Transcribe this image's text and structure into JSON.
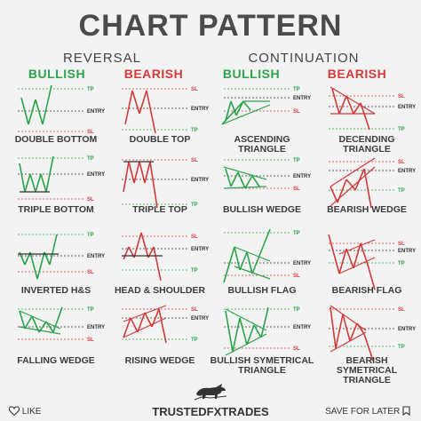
{
  "header": {
    "title": "CHART PATTERN",
    "reversal": "REVERSAL",
    "continuation": "CONTINUATION",
    "bullish_left": "BULLISH",
    "bearish_left": "BEARISH",
    "bullish_right": "BULLISH",
    "bearish_right": "BEARISH"
  },
  "levels": {
    "tp": "TP",
    "sl": "SL",
    "entry": "ENTRY"
  },
  "patterns": [
    {
      "label": "DOUBLE BOTTOM"
    },
    {
      "label": "DOUBLE TOP"
    },
    {
      "label": "ASCENDING TRIANGLE"
    },
    {
      "label": "DECENDING TRIANGLE"
    },
    {
      "label": "TRIPLE BOTTOM"
    },
    {
      "label": "TRIPLE TOP"
    },
    {
      "label": "BULLISH WEDGE"
    },
    {
      "label": "BEARISH WEDGE"
    },
    {
      "label": "INVERTED H&S"
    },
    {
      "label": "HEAD & SHOULDER"
    },
    {
      "label": "BULLISH FLAG"
    },
    {
      "label": "BEARISH FLAG"
    },
    {
      "label": "FALLING WEDGE"
    },
    {
      "label": "RISING WEDGE"
    },
    {
      "label": "BULLISH SYMETRICAL TRIANGLE"
    },
    {
      "label": "BEARISH SYMETRICAL TRIANGLE"
    }
  ],
  "footer": {
    "like": "LIKE",
    "brand": "TRUSTEDFXTRADES",
    "save": "SAVE FOR LATER"
  },
  "icons": {
    "like": "heart-icon",
    "save": "bookmark-icon",
    "logo": "bull-logo-icon"
  },
  "colors": {
    "bullish": "#2aa34a",
    "bearish": "#d23a3a",
    "text": "#3b3b3b",
    "background": "#f3f3f3"
  }
}
